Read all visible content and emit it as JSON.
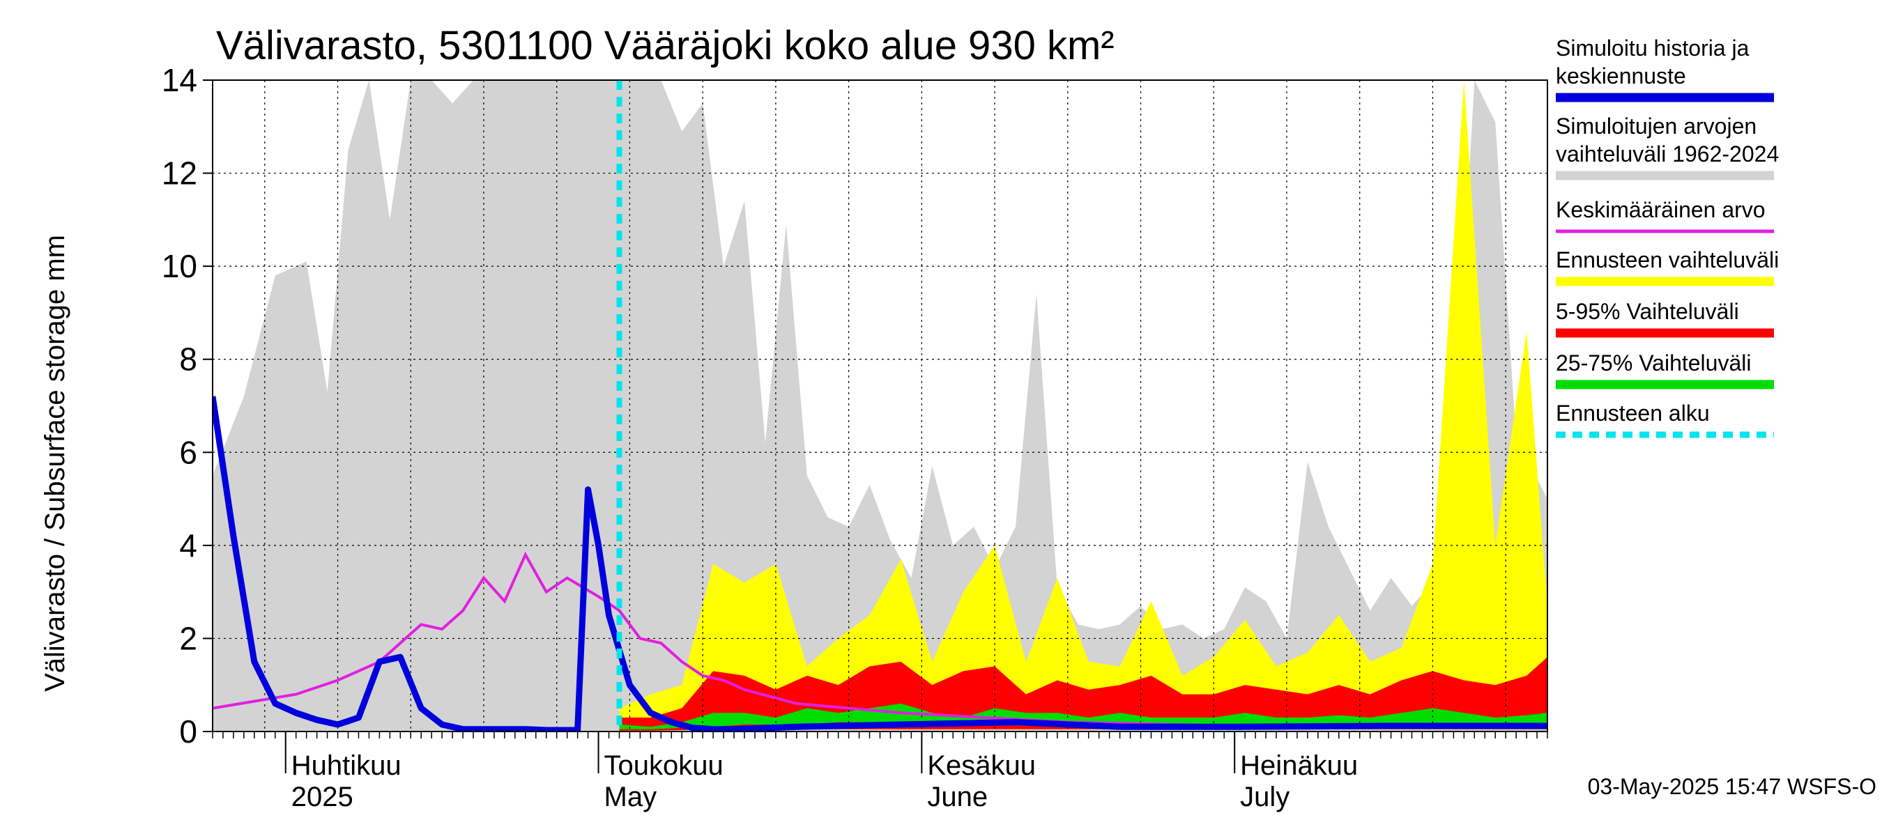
{
  "chart_data": {
    "type": "area",
    "title": "Välivarasto, 5301100 Vääräjoki koko alue 930 km²",
    "ylabel": "Välivarasto / Subsurface storage  mm",
    "ylim": [
      0,
      14
    ],
    "yticks": [
      0,
      2,
      4,
      6,
      8,
      10,
      12,
      14
    ],
    "xlim": [
      "2025-03-25",
      "2025-07-31"
    ],
    "forecast_start": "2025-05-03",
    "grid": true,
    "legend_position": "right",
    "months": [
      {
        "date": "2025-04-01",
        "label_fi": "Huhtikuu",
        "label_en": "2025"
      },
      {
        "date": "2025-05-01",
        "label_fi": "Toukokuu",
        "label_en": "May"
      },
      {
        "date": "2025-06-01",
        "label_fi": "Kesäkuu",
        "label_en": "June"
      },
      {
        "date": "2025-07-01",
        "label_fi": "Heinäkuu",
        "label_en": "July"
      }
    ],
    "legend": [
      {
        "label": "Simuloitu historia ja keskiennuste",
        "color": "#0000dd",
        "style": "thick-line"
      },
      {
        "label": "Simuloitujen arvojen vaihteluväli 1962-2024",
        "color": "#d3d3d3",
        "style": "band"
      },
      {
        "label": "Keskimääräinen arvo",
        "color": "#e020e0",
        "style": "line"
      },
      {
        "label": "Ennusteen vaihteluväli",
        "color": "#ffff00",
        "style": "band"
      },
      {
        "label": "5-95% Vaihteluväli",
        "color": "#ff0000",
        "style": "band"
      },
      {
        "label": "25-75% Vaihteluväli",
        "color": "#00dd00",
        "style": "band"
      },
      {
        "label": "Ennusteen alku",
        "color": "#00e5ee",
        "style": "dashed"
      }
    ],
    "series": [
      {
        "name": "Simuloitujen arvojen vaihteluväli 1962-2024",
        "kind": "band_upper",
        "x": [
          "2025-03-25",
          "2025-03-28",
          "2025-03-31",
          "2025-04-03",
          "2025-04-05",
          "2025-04-07",
          "2025-04-09",
          "2025-04-11",
          "2025-04-13",
          "2025-04-15",
          "2025-04-17",
          "2025-04-19",
          "2025-04-21",
          "2025-04-23",
          "2025-04-25",
          "2025-04-27",
          "2025-04-29",
          "2025-05-01",
          "2025-05-03",
          "2025-05-05",
          "2025-05-07",
          "2025-05-09",
          "2025-05-11",
          "2025-05-13",
          "2025-05-15",
          "2025-05-17",
          "2025-05-19",
          "2025-05-21",
          "2025-05-23",
          "2025-05-25",
          "2025-05-27",
          "2025-05-29",
          "2025-05-31",
          "2025-06-02",
          "2025-06-04",
          "2025-06-06",
          "2025-06-08",
          "2025-06-10",
          "2025-06-12",
          "2025-06-14",
          "2025-06-16",
          "2025-06-18",
          "2025-06-20",
          "2025-06-22",
          "2025-06-24",
          "2025-06-26",
          "2025-06-28",
          "2025-06-30",
          "2025-07-02",
          "2025-07-04",
          "2025-07-06",
          "2025-07-08",
          "2025-07-10",
          "2025-07-12",
          "2025-07-14",
          "2025-07-16",
          "2025-07-18",
          "2025-07-20",
          "2025-07-22",
          "2025-07-24",
          "2025-07-26",
          "2025-07-28",
          "2025-07-31"
        ],
        "values": [
          5.5,
          7.2,
          9.8,
          10.1,
          7.3,
          12.5,
          14,
          11,
          14,
          14,
          13.5,
          14,
          14,
          14,
          14,
          14,
          14,
          14,
          14,
          14,
          14,
          12.9,
          13.5,
          10,
          11.4,
          6.2,
          10.9,
          5.5,
          4.6,
          4.4,
          5.3,
          4.1,
          3.3,
          5.7,
          4.0,
          4.4,
          3.5,
          4.4,
          9.4,
          3.1,
          2.3,
          2.2,
          2.3,
          2.7,
          2.2,
          2.3,
          2.0,
          2.2,
          3.1,
          2.8,
          2.0,
          5.8,
          4.4,
          3.5,
          2.6,
          3.3,
          2.7,
          3.2,
          6.0,
          14,
          13.1,
          6.3,
          5.0
        ],
        "color": "#d3d3d3"
      },
      {
        "name": "Simuloitu historia ja keskiennuste",
        "kind": "line",
        "x": [
          "2025-03-25",
          "2025-03-27",
          "2025-03-29",
          "2025-03-31",
          "2025-04-02",
          "2025-04-04",
          "2025-04-06",
          "2025-04-08",
          "2025-04-10",
          "2025-04-12",
          "2025-04-14",
          "2025-04-16",
          "2025-04-18",
          "2025-04-20",
          "2025-04-22",
          "2025-04-24",
          "2025-04-26",
          "2025-04-28",
          "2025-04-29",
          "2025-04-30",
          "2025-05-01",
          "2025-05-02",
          "2025-05-04",
          "2025-05-06",
          "2025-05-08",
          "2025-05-10",
          "2025-05-12",
          "2025-05-14",
          "2025-05-20",
          "2025-05-30",
          "2025-06-10",
          "2025-06-20",
          "2025-07-01",
          "2025-07-15",
          "2025-07-31"
        ],
        "values": [
          7.2,
          4.2,
          1.5,
          0.6,
          0.4,
          0.25,
          0.15,
          0.3,
          1.5,
          1.6,
          0.5,
          0.15,
          0.05,
          0.05,
          0.05,
          0.05,
          0.03,
          0.03,
          0.03,
          5.2,
          4.0,
          2.5,
          1.0,
          0.4,
          0.2,
          0.08,
          0.05,
          0.05,
          0.1,
          0.15,
          0.2,
          0.1,
          0.1,
          0.12,
          0.12
        ],
        "color": "#0000dd"
      },
      {
        "name": "Keskimääräinen arvo",
        "kind": "line",
        "x": [
          "2025-03-25",
          "2025-03-29",
          "2025-04-02",
          "2025-04-06",
          "2025-04-10",
          "2025-04-14",
          "2025-04-16",
          "2025-04-18",
          "2025-04-20",
          "2025-04-22",
          "2025-04-24",
          "2025-04-26",
          "2025-04-28",
          "2025-05-01",
          "2025-05-03",
          "2025-05-05",
          "2025-05-07",
          "2025-05-09",
          "2025-05-11",
          "2025-05-13",
          "2025-05-15",
          "2025-05-20",
          "2025-05-30",
          "2025-06-15",
          "2025-07-01",
          "2025-07-31"
        ],
        "values": [
          0.5,
          0.65,
          0.8,
          1.1,
          1.5,
          2.3,
          2.2,
          2.6,
          3.3,
          2.8,
          3.8,
          3.0,
          3.3,
          2.9,
          2.6,
          2.0,
          1.9,
          1.5,
          1.2,
          1.1,
          0.9,
          0.6,
          0.4,
          0.2,
          0.12,
          0.12
        ],
        "color": "#e020e0"
      }
    ],
    "forecast_bands": {
      "x": [
        "2025-05-03",
        "2025-05-06",
        "2025-05-09",
        "2025-05-12",
        "2025-05-15",
        "2025-05-18",
        "2025-05-21",
        "2025-05-24",
        "2025-05-27",
        "2025-05-30",
        "2025-06-02",
        "2025-06-05",
        "2025-06-08",
        "2025-06-11",
        "2025-06-14",
        "2025-06-17",
        "2025-06-20",
        "2025-06-23",
        "2025-06-26",
        "2025-06-29",
        "2025-07-02",
        "2025-07-05",
        "2025-07-08",
        "2025-07-11",
        "2025-07-14",
        "2025-07-17",
        "2025-07-20",
        "2025-07-23",
        "2025-07-26",
        "2025-07-29",
        "2025-07-31"
      ],
      "max": [
        0.5,
        0.8,
        1.0,
        3.6,
        3.2,
        3.6,
        1.4,
        2.0,
        2.5,
        3.7,
        1.5,
        3.0,
        4.0,
        1.5,
        3.3,
        1.5,
        1.4,
        2.8,
        1.2,
        1.6,
        2.4,
        1.4,
        1.7,
        2.5,
        1.5,
        1.8,
        3.6,
        14,
        4.0,
        8.6,
        2.7
      ],
      "p95": [
        0.3,
        0.3,
        0.5,
        1.3,
        1.2,
        0.9,
        1.2,
        1.0,
        1.4,
        1.5,
        1.0,
        1.3,
        1.4,
        0.8,
        1.1,
        0.9,
        1.0,
        1.2,
        0.8,
        0.8,
        1.0,
        0.9,
        0.8,
        1.0,
        0.8,
        1.1,
        1.3,
        1.1,
        1.0,
        1.2,
        1.6
      ],
      "p75": [
        0.15,
        0.1,
        0.2,
        0.4,
        0.4,
        0.3,
        0.5,
        0.4,
        0.5,
        0.6,
        0.4,
        0.3,
        0.5,
        0.4,
        0.4,
        0.3,
        0.4,
        0.3,
        0.3,
        0.3,
        0.4,
        0.3,
        0.3,
        0.35,
        0.3,
        0.4,
        0.5,
        0.4,
        0.3,
        0.35,
        0.4
      ],
      "p25": [
        0.05,
        0.05,
        0.08,
        0.1,
        0.15,
        0.15,
        0.15,
        0.2,
        0.2,
        0.15,
        0.15,
        0.12,
        0.15,
        0.12,
        0.12,
        0.1,
        0.12,
        0.12,
        0.1,
        0.1,
        0.12,
        0.1,
        0.1,
        0.12,
        0.1,
        0.12,
        0.12,
        0.12,
        0.1,
        0.12,
        0.12
      ],
      "min": [
        0.02,
        0.02,
        0.03,
        0.05,
        0.05,
        0.05,
        0.05,
        0.05,
        0.05,
        0.05,
        0.05,
        0.05,
        0.05,
        0.05,
        0.05,
        0.05,
        0.05,
        0.05,
        0.05,
        0.05,
        0.05,
        0.05,
        0.05,
        0.05,
        0.05,
        0.05,
        0.05,
        0.05,
        0.05,
        0.05,
        0.05
      ]
    },
    "footer": "03-May-2025 15:47 WSFS-O"
  }
}
